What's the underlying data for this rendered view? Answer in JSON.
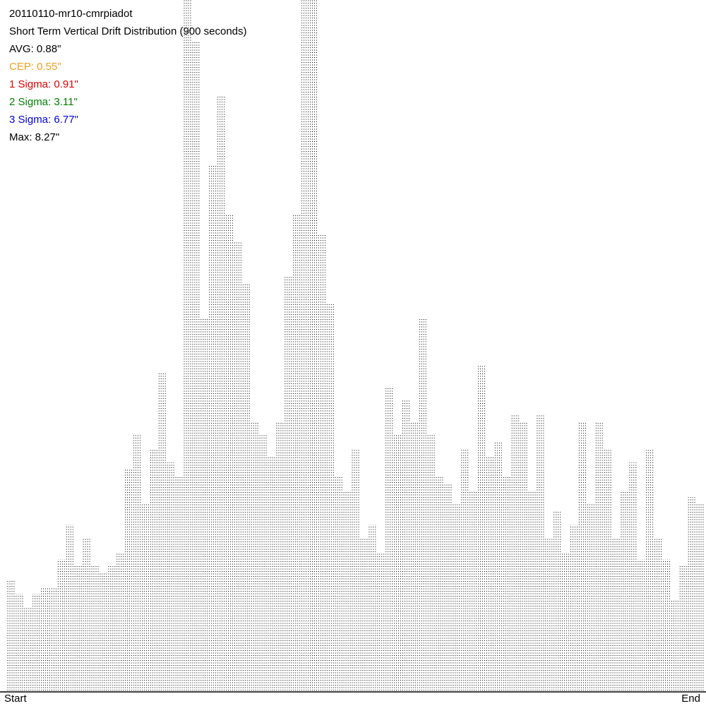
{
  "chart_data": {
    "type": "dot-columns",
    "title": "20110110-mr10-cmrpiadot",
    "subtitle": "Short Term Vertical Drift Distribution (900 seconds)",
    "stats": [
      {
        "text": "AVG: 0.88\"",
        "color": "#000000"
      },
      {
        "text": "CEP: 0.55\"",
        "color": "#f0a020"
      },
      {
        "text": "1 Sigma: 0.91\"",
        "color": "#e00000"
      },
      {
        "text": "2 Sigma: 3.11\"",
        "color": "#008000"
      },
      {
        "text": "3 Sigma: 6.77\"",
        "color": "#0000e0"
      },
      {
        "text": "Max: 8.27\"",
        "color": "#000000"
      }
    ],
    "x_labels": [
      "Start",
      "End"
    ],
    "color": "#000000",
    "ylim": [
      0,
      100
    ],
    "values": [
      16,
      14,
      12,
      14,
      15,
      15,
      19,
      24,
      18,
      22,
      18,
      17,
      18,
      20,
      32,
      37,
      27,
      35,
      46,
      33,
      31,
      100,
      94,
      54,
      76,
      86,
      69,
      65,
      59,
      39,
      37,
      34,
      39,
      60,
      69,
      100,
      100,
      66,
      56,
      31,
      29,
      35,
      22,
      24,
      20,
      44,
      37,
      42,
      39,
      54,
      37,
      31,
      30,
      27,
      35,
      29,
      47,
      34,
      36,
      31,
      40,
      39,
      29,
      40,
      22,
      26,
      20,
      24,
      39,
      27,
      39,
      35,
      22,
      29,
      33,
      19,
      35,
      22,
      19,
      13,
      18,
      28,
      27
    ]
  }
}
